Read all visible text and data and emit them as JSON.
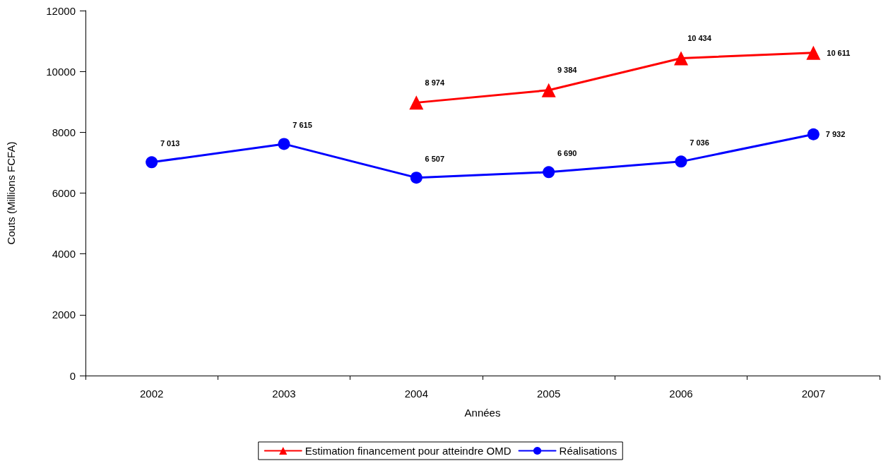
{
  "chart_data": {
    "type": "line",
    "categories": [
      "2002",
      "2003",
      "2004",
      "2005",
      "2006",
      "2007"
    ],
    "xlabel": "Années",
    "ylabel": "Couts (Millions FCFA)",
    "ylim": [
      0,
      12000
    ],
    "yticks": [
      0,
      2000,
      4000,
      6000,
      8000,
      10000,
      12000
    ],
    "grid": false,
    "legend": "bottom",
    "line_style": "solid",
    "series": [
      {
        "name": "Estimation financement pour atteindre OMD",
        "color": "#ff0000",
        "marker": "triangle",
        "values": [
          null,
          null,
          8974,
          9384,
          10434,
          10611
        ],
        "value_labels": [
          null,
          null,
          "8 974",
          "9 384",
          "10 434",
          "10 611"
        ]
      },
      {
        "name": "Réalisations",
        "color": "#0000ff",
        "marker": "circle",
        "values": [
          7013,
          7615,
          6507,
          6690,
          7036,
          7932
        ],
        "value_labels": [
          "7 013",
          "7 615",
          "6 507",
          "6 690",
          "7 036",
          "7 932"
        ]
      }
    ]
  }
}
